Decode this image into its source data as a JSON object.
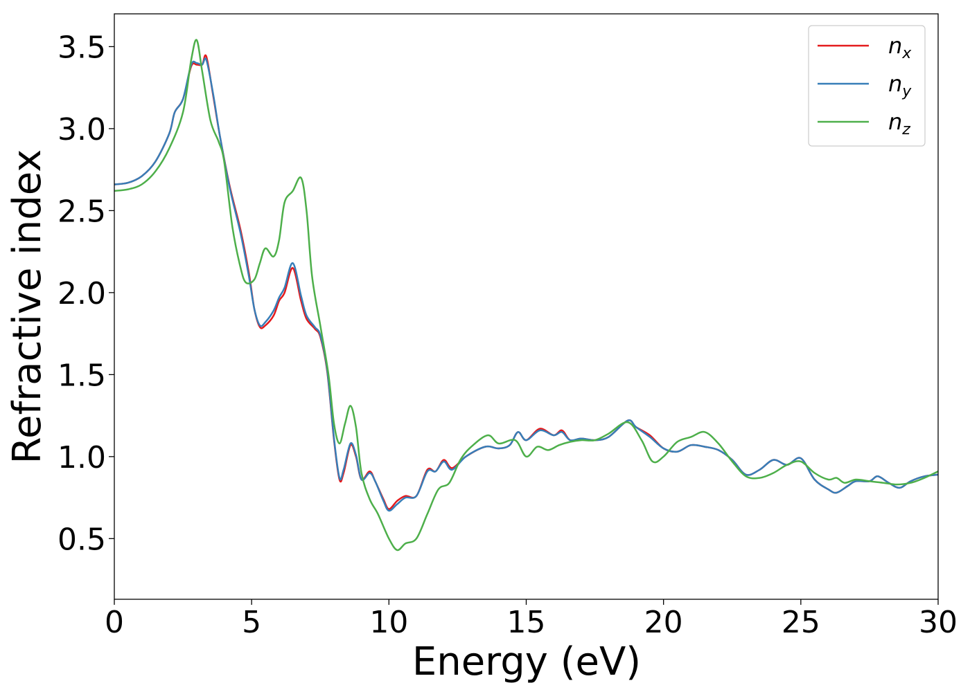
{
  "chart_data": {
    "type": "line",
    "xlabel": "Energy (eV)",
    "ylabel": "Refractive index",
    "xlim": [
      0,
      30
    ],
    "ylim": [
      0.13,
      3.7
    ],
    "x_ticks": [
      "0",
      "5",
      "10",
      "15",
      "20",
      "25",
      "30"
    ],
    "y_ticks": [
      "0.5",
      "1.0",
      "1.5",
      "2.0",
      "2.5",
      "3.0",
      "3.5"
    ],
    "x_tick_values": [
      0,
      5,
      10,
      15,
      20,
      25,
      30
    ],
    "y_tick_values": [
      0.5,
      1.0,
      1.5,
      2.0,
      2.5,
      3.0,
      3.5
    ],
    "grid": false,
    "legend_position": "top-right",
    "series": [
      {
        "name": "n",
        "subscript": "x",
        "color": "#e41a1c",
        "points": [
          [
            0,
            2.66
          ],
          [
            0.5,
            2.67
          ],
          [
            1.0,
            2.71
          ],
          [
            1.5,
            2.8
          ],
          [
            2.0,
            2.97
          ],
          [
            2.2,
            3.1
          ],
          [
            2.5,
            3.18
          ],
          [
            2.8,
            3.38
          ],
          [
            3.0,
            3.39
          ],
          [
            3.2,
            3.39
          ],
          [
            3.35,
            3.44
          ],
          [
            3.6,
            3.2
          ],
          [
            3.85,
            2.95
          ],
          [
            4.2,
            2.65
          ],
          [
            4.6,
            2.38
          ],
          [
            4.9,
            2.12
          ],
          [
            5.1,
            1.9
          ],
          [
            5.3,
            1.79
          ],
          [
            5.5,
            1.8
          ],
          [
            5.8,
            1.86
          ],
          [
            6.0,
            1.95
          ],
          [
            6.2,
            2.0
          ],
          [
            6.5,
            2.15
          ],
          [
            6.8,
            1.95
          ],
          [
            7.0,
            1.84
          ],
          [
            7.3,
            1.78
          ],
          [
            7.5,
            1.73
          ],
          [
            7.75,
            1.52
          ],
          [
            8.0,
            1.1
          ],
          [
            8.2,
            0.86
          ],
          [
            8.35,
            0.9
          ],
          [
            8.6,
            1.07
          ],
          [
            8.8,
            1.0
          ],
          [
            9.0,
            0.86
          ],
          [
            9.3,
            0.91
          ],
          [
            9.5,
            0.85
          ],
          [
            9.8,
            0.74
          ],
          [
            10.0,
            0.68
          ],
          [
            10.3,
            0.73
          ],
          [
            10.6,
            0.76
          ],
          [
            11.0,
            0.76
          ],
          [
            11.4,
            0.92
          ],
          [
            11.7,
            0.91
          ],
          [
            12.0,
            0.98
          ],
          [
            12.3,
            0.93
          ],
          [
            12.8,
            1.0
          ],
          [
            13.5,
            1.06
          ],
          [
            14.0,
            1.05
          ],
          [
            14.4,
            1.07
          ],
          [
            14.7,
            1.15
          ],
          [
            15.0,
            1.1
          ],
          [
            15.5,
            1.17
          ],
          [
            16.0,
            1.13
          ],
          [
            16.3,
            1.16
          ],
          [
            16.6,
            1.1
          ],
          [
            17.0,
            1.11
          ],
          [
            17.5,
            1.1
          ],
          [
            18.0,
            1.12
          ],
          [
            18.7,
            1.22
          ],
          [
            19.0,
            1.18
          ],
          [
            19.5,
            1.13
          ],
          [
            20.0,
            1.05
          ],
          [
            20.5,
            1.03
          ],
          [
            21.0,
            1.07
          ],
          [
            21.5,
            1.06
          ],
          [
            22.0,
            1.04
          ],
          [
            22.5,
            0.98
          ],
          [
            23.0,
            0.89
          ],
          [
            23.5,
            0.92
          ],
          [
            24.0,
            0.98
          ],
          [
            24.5,
            0.95
          ],
          [
            25.0,
            0.99
          ],
          [
            25.5,
            0.86
          ],
          [
            26.0,
            0.8
          ],
          [
            26.3,
            0.78
          ],
          [
            26.7,
            0.82
          ],
          [
            27.0,
            0.85
          ],
          [
            27.5,
            0.85
          ],
          [
            27.8,
            0.88
          ],
          [
            28.2,
            0.84
          ],
          [
            28.6,
            0.81
          ],
          [
            29.0,
            0.85
          ],
          [
            29.5,
            0.88
          ],
          [
            30.0,
            0.89
          ]
        ]
      },
      {
        "name": "n",
        "subscript": "y",
        "color": "#377eb8",
        "points": [
          [
            0,
            2.66
          ],
          [
            0.5,
            2.67
          ],
          [
            1.0,
            2.71
          ],
          [
            1.5,
            2.8
          ],
          [
            2.0,
            2.97
          ],
          [
            2.2,
            3.1
          ],
          [
            2.5,
            3.18
          ],
          [
            2.8,
            3.39
          ],
          [
            3.0,
            3.4
          ],
          [
            3.2,
            3.39
          ],
          [
            3.35,
            3.42
          ],
          [
            3.6,
            3.21
          ],
          [
            3.85,
            2.95
          ],
          [
            4.2,
            2.64
          ],
          [
            4.6,
            2.36
          ],
          [
            4.9,
            2.1
          ],
          [
            5.1,
            1.9
          ],
          [
            5.3,
            1.8
          ],
          [
            5.5,
            1.82
          ],
          [
            5.8,
            1.89
          ],
          [
            6.0,
            1.97
          ],
          [
            6.2,
            2.03
          ],
          [
            6.5,
            2.18
          ],
          [
            6.8,
            1.98
          ],
          [
            7.0,
            1.86
          ],
          [
            7.3,
            1.79
          ],
          [
            7.5,
            1.74
          ],
          [
            7.75,
            1.53
          ],
          [
            8.0,
            1.11
          ],
          [
            8.2,
            0.87
          ],
          [
            8.35,
            0.92
          ],
          [
            8.6,
            1.08
          ],
          [
            8.8,
            1.01
          ],
          [
            9.0,
            0.86
          ],
          [
            9.3,
            0.9
          ],
          [
            9.5,
            0.85
          ],
          [
            9.8,
            0.73
          ],
          [
            10.0,
            0.67
          ],
          [
            10.3,
            0.71
          ],
          [
            10.6,
            0.75
          ],
          [
            11.0,
            0.76
          ],
          [
            11.4,
            0.91
          ],
          [
            11.7,
            0.91
          ],
          [
            12.0,
            0.97
          ],
          [
            12.3,
            0.92
          ],
          [
            12.8,
            1.0
          ],
          [
            13.5,
            1.06
          ],
          [
            14.0,
            1.05
          ],
          [
            14.4,
            1.07
          ],
          [
            14.7,
            1.15
          ],
          [
            15.0,
            1.1
          ],
          [
            15.5,
            1.16
          ],
          [
            16.0,
            1.13
          ],
          [
            16.3,
            1.15
          ],
          [
            16.6,
            1.1
          ],
          [
            17.0,
            1.11
          ],
          [
            17.5,
            1.1
          ],
          [
            18.0,
            1.12
          ],
          [
            18.7,
            1.22
          ],
          [
            19.0,
            1.18
          ],
          [
            19.5,
            1.12
          ],
          [
            20.0,
            1.05
          ],
          [
            20.5,
            1.03
          ],
          [
            21.0,
            1.07
          ],
          [
            21.5,
            1.06
          ],
          [
            22.0,
            1.04
          ],
          [
            22.5,
            0.98
          ],
          [
            23.0,
            0.89
          ],
          [
            23.5,
            0.92
          ],
          [
            24.0,
            0.98
          ],
          [
            24.5,
            0.95
          ],
          [
            25.0,
            0.99
          ],
          [
            25.5,
            0.86
          ],
          [
            26.0,
            0.8
          ],
          [
            26.3,
            0.78
          ],
          [
            26.7,
            0.82
          ],
          [
            27.0,
            0.85
          ],
          [
            27.5,
            0.85
          ],
          [
            27.8,
            0.88
          ],
          [
            28.2,
            0.84
          ],
          [
            28.6,
            0.81
          ],
          [
            29.0,
            0.85
          ],
          [
            29.5,
            0.88
          ],
          [
            30.0,
            0.89
          ]
        ]
      },
      {
        "name": "n",
        "subscript": "z",
        "color": "#4daf4a",
        "points": [
          [
            0,
            2.62
          ],
          [
            0.5,
            2.63
          ],
          [
            1.0,
            2.66
          ],
          [
            1.5,
            2.74
          ],
          [
            2.0,
            2.88
          ],
          [
            2.5,
            3.1
          ],
          [
            2.8,
            3.42
          ],
          [
            3.0,
            3.54
          ],
          [
            3.2,
            3.35
          ],
          [
            3.5,
            3.05
          ],
          [
            3.8,
            2.92
          ],
          [
            4.0,
            2.8
          ],
          [
            4.3,
            2.4
          ],
          [
            4.6,
            2.15
          ],
          [
            4.8,
            2.06
          ],
          [
            5.1,
            2.08
          ],
          [
            5.3,
            2.18
          ],
          [
            5.5,
            2.27
          ],
          [
            5.8,
            2.22
          ],
          [
            6.0,
            2.32
          ],
          [
            6.2,
            2.55
          ],
          [
            6.5,
            2.62
          ],
          [
            6.8,
            2.7
          ],
          [
            7.0,
            2.5
          ],
          [
            7.2,
            2.1
          ],
          [
            7.5,
            1.8
          ],
          [
            7.8,
            1.5
          ],
          [
            8.0,
            1.2
          ],
          [
            8.2,
            1.08
          ],
          [
            8.4,
            1.2
          ],
          [
            8.6,
            1.31
          ],
          [
            8.8,
            1.18
          ],
          [
            9.0,
            0.9
          ],
          [
            9.3,
            0.74
          ],
          [
            9.6,
            0.65
          ],
          [
            10.0,
            0.5
          ],
          [
            10.3,
            0.43
          ],
          [
            10.6,
            0.47
          ],
          [
            11.0,
            0.5
          ],
          [
            11.4,
            0.65
          ],
          [
            11.8,
            0.8
          ],
          [
            12.2,
            0.84
          ],
          [
            12.6,
            0.98
          ],
          [
            13.0,
            1.06
          ],
          [
            13.6,
            1.13
          ],
          [
            14.0,
            1.08
          ],
          [
            14.6,
            1.1
          ],
          [
            15.0,
            1.0
          ],
          [
            15.4,
            1.06
          ],
          [
            15.8,
            1.04
          ],
          [
            16.2,
            1.07
          ],
          [
            16.6,
            1.09
          ],
          [
            17.0,
            1.1
          ],
          [
            17.5,
            1.1
          ],
          [
            18.0,
            1.14
          ],
          [
            18.7,
            1.21
          ],
          [
            19.2,
            1.1
          ],
          [
            19.6,
            0.97
          ],
          [
            20.0,
            1.0
          ],
          [
            20.5,
            1.09
          ],
          [
            21.0,
            1.12
          ],
          [
            21.5,
            1.15
          ],
          [
            22.0,
            1.08
          ],
          [
            22.5,
            0.97
          ],
          [
            23.0,
            0.88
          ],
          [
            23.5,
            0.87
          ],
          [
            24.0,
            0.9
          ],
          [
            24.5,
            0.95
          ],
          [
            25.0,
            0.97
          ],
          [
            25.5,
            0.9
          ],
          [
            26.0,
            0.86
          ],
          [
            26.3,
            0.87
          ],
          [
            26.6,
            0.84
          ],
          [
            27.0,
            0.86
          ],
          [
            27.5,
            0.85
          ],
          [
            28.0,
            0.84
          ],
          [
            28.5,
            0.83
          ],
          [
            29.0,
            0.84
          ],
          [
            29.5,
            0.87
          ],
          [
            30.0,
            0.91
          ]
        ]
      }
    ]
  }
}
